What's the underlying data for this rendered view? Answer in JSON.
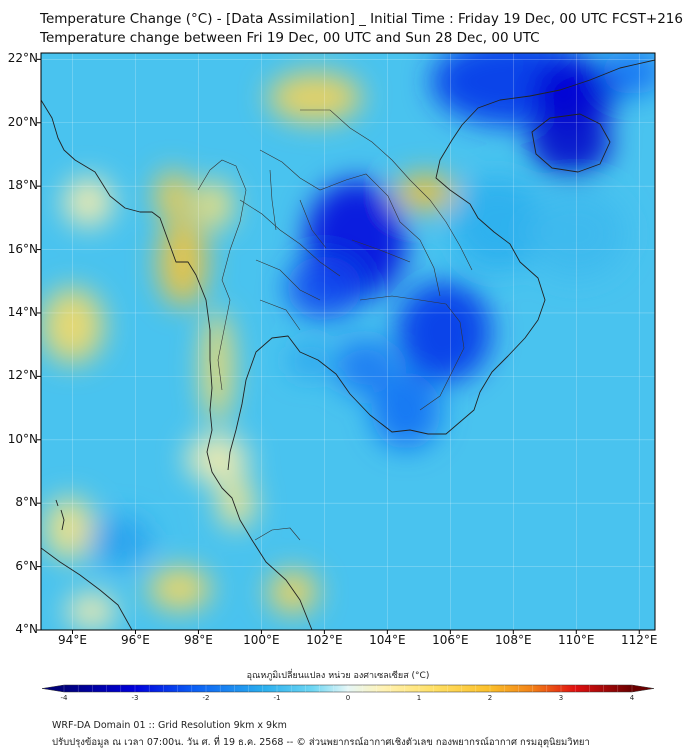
{
  "header": {
    "title_line1": "Temperature Change (°C) - [Data Assimilation] _ Initial Time : Friday 19 Dec, 00 UTC FCST+216",
    "title_line2": "Temperature change between Fri 19 Dec, 00 UTC and Sun 28 Dec, 00 UTC"
  },
  "map": {
    "extent": {
      "lon_min": 93,
      "lon_max": 112.5,
      "lat_min": 4,
      "lat_max": 22.2
    },
    "lat_ticks": [
      {
        "value": 22,
        "label": "22°N"
      },
      {
        "value": 20,
        "label": "20°N"
      },
      {
        "value": 18,
        "label": "18°N"
      },
      {
        "value": 16,
        "label": "16°N"
      },
      {
        "value": 14,
        "label": "14°N"
      },
      {
        "value": 12,
        "label": "12°N"
      },
      {
        "value": 10,
        "label": "10°N"
      },
      {
        "value": 8,
        "label": "8°N"
      },
      {
        "value": 6,
        "label": "6°N"
      },
      {
        "value": 4,
        "label": "4°N"
      }
    ],
    "lon_ticks": [
      {
        "value": 94,
        "label": "94°E"
      },
      {
        "value": 96,
        "label": "96°E"
      },
      {
        "value": 98,
        "label": "98°E"
      },
      {
        "value": 100,
        "label": "100°E"
      },
      {
        "value": 102,
        "label": "102°E"
      },
      {
        "value": 104,
        "label": "104°E"
      },
      {
        "value": 106,
        "label": "106°E"
      },
      {
        "value": 108,
        "label": "108°E"
      },
      {
        "value": 110,
        "label": "110°E"
      },
      {
        "value": 112,
        "label": "112°E"
      }
    ],
    "background_color": "#49c3ef",
    "anomalies": [
      {
        "lon": 103.0,
        "lat": 16.3,
        "value": -3.0,
        "rlon": 1.6,
        "rlat": 1.9
      },
      {
        "lon": 102.0,
        "lat": 14.8,
        "value": -2.4,
        "rlon": 1.2,
        "rlat": 1.0
      },
      {
        "lon": 105.8,
        "lat": 13.4,
        "value": -2.6,
        "rlon": 1.5,
        "rlat": 1.6
      },
      {
        "lon": 104.6,
        "lat": 10.9,
        "value": -2.0,
        "rlon": 1.1,
        "rlat": 1.2
      },
      {
        "lon": 103.3,
        "lat": 12.3,
        "value": -1.9,
        "rlon": 1.0,
        "rlat": 0.9
      },
      {
        "lon": 101.5,
        "lat": 12.5,
        "value": -1.4,
        "rlon": 0.6,
        "rlat": 0.5
      },
      {
        "lon": 108.0,
        "lat": 21.3,
        "value": -2.6,
        "rlon": 2.6,
        "rlat": 1.4
      },
      {
        "lon": 110.0,
        "lat": 21.0,
        "value": -3.1,
        "rlon": 1.4,
        "rlat": 1.0
      },
      {
        "lon": 109.8,
        "lat": 19.4,
        "value": -3.2,
        "rlon": 1.3,
        "rlat": 1.1
      },
      {
        "lon": 111.8,
        "lat": 21.6,
        "value": -2.0,
        "rlon": 1.0,
        "rlat": 0.7
      },
      {
        "lon": 107.5,
        "lat": 16.8,
        "value": -1.2,
        "rlon": 1.5,
        "rlat": 1.5
      },
      {
        "lon": 110.0,
        "lat": 16.5,
        "value": -1.0,
        "rlon": 1.6,
        "rlat": 1.4
      },
      {
        "lon": 97.5,
        "lat": 15.6,
        "value": 1.9,
        "rlon": 0.8,
        "rlat": 1.4
      },
      {
        "lon": 97.2,
        "lat": 17.7,
        "value": 1.7,
        "rlon": 0.6,
        "rlat": 0.8
      },
      {
        "lon": 98.6,
        "lat": 12.3,
        "value": 1.3,
        "rlon": 0.5,
        "rlat": 1.8
      },
      {
        "lon": 98.5,
        "lat": 17.4,
        "value": 1.1,
        "rlon": 0.6,
        "rlat": 0.8
      },
      {
        "lon": 105.2,
        "lat": 17.8,
        "value": 2.0,
        "rlon": 1.0,
        "rlat": 0.6
      },
      {
        "lon": 101.7,
        "lat": 20.8,
        "value": 1.5,
        "rlon": 1.5,
        "rlat": 0.8
      },
      {
        "lon": 94.0,
        "lat": 13.6,
        "value": 1.3,
        "rlon": 1.0,
        "rlat": 1.2
      },
      {
        "lon": 101.0,
        "lat": 5.2,
        "value": 1.5,
        "rlon": 0.8,
        "rlat": 0.7
      },
      {
        "lon": 97.4,
        "lat": 5.3,
        "value": 1.4,
        "rlon": 1.0,
        "rlat": 0.7
      },
      {
        "lon": 93.9,
        "lat": 7.2,
        "value": 1.0,
        "rlon": 0.8,
        "rlat": 1.0
      },
      {
        "lon": 99.2,
        "lat": 8.0,
        "value": 0.9,
        "rlon": 0.6,
        "rlat": 0.8
      },
      {
        "lon": 94.5,
        "lat": 17.5,
        "value": 0.6,
        "rlon": 0.8,
        "rlat": 0.8
      },
      {
        "lon": 95.5,
        "lat": 6.8,
        "value": -1.4,
        "rlon": 1.0,
        "rlat": 0.8
      },
      {
        "lon": 98.6,
        "lat": 9.4,
        "value": 0.6,
        "rlon": 1.0,
        "rlat": 0.8
      },
      {
        "lon": 94.6,
        "lat": 4.6,
        "value": 0.6,
        "rlon": 0.8,
        "rlat": 0.6
      }
    ]
  },
  "colorbar": {
    "title": "อุณหภูมิเปลี่ยนแปลง หน่วย องศาเซลเซียส (°C)",
    "min": -4,
    "max": 4,
    "ticks": [
      {
        "value": -4,
        "label": "-4"
      },
      {
        "value": -3,
        "label": "-3"
      },
      {
        "value": -2,
        "label": "-2"
      },
      {
        "value": -1,
        "label": "-1"
      },
      {
        "value": 0,
        "label": "0"
      },
      {
        "value": 1,
        "label": "1"
      },
      {
        "value": 2,
        "label": "2"
      },
      {
        "value": 3,
        "label": "3"
      },
      {
        "value": 4,
        "label": "4"
      }
    ],
    "color_stops": [
      {
        "v": -4,
        "c": "#00007a"
      },
      {
        "v": -3,
        "c": "#0000dc"
      },
      {
        "v": -2.2,
        "c": "#0a5cf5"
      },
      {
        "v": -1.2,
        "c": "#2aaeee"
      },
      {
        "v": -0.5,
        "c": "#6dd6f3"
      },
      {
        "v": 0,
        "c": "#e6f7f7"
      },
      {
        "v": 0.5,
        "c": "#fff2b4"
      },
      {
        "v": 1.2,
        "c": "#ffe066"
      },
      {
        "v": 2,
        "c": "#fbbf2a"
      },
      {
        "v": 2.6,
        "c": "#f28017"
      },
      {
        "v": 3.2,
        "c": "#e01010"
      },
      {
        "v": 4,
        "c": "#6a0000"
      }
    ]
  },
  "footer": {
    "line1": "WRF-DA Domain 01 :: Grid Resolution 9km x 9km",
    "line2": "ปรับปรุงข้อมูล ณ เวลา 07:00น. วัน ศ. ที่ 19 ธ.ค. 2568 -- © ส่วนพยากรณ์อากาศเชิงตัวเลข กองพยากรณ์อากาศ กรมอุตุนิยมวิทยา"
  }
}
